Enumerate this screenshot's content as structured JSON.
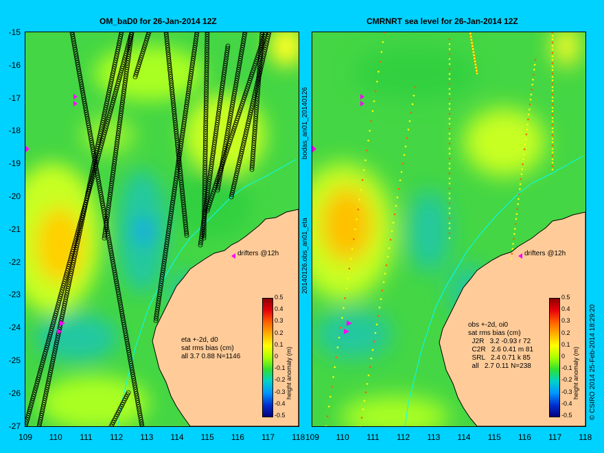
{
  "left_panel": {
    "title": "OM_baD0 for 26-Jan-2014 12Z",
    "info_lines": [
      "eta +-2d, d0",
      "sat rms bias (cm)",
      "all 3.7 0.88 N=1146"
    ],
    "drifter_label": "drifters @12h"
  },
  "right_panel": {
    "title": "CMRNRT sea level  for 26-Jan-2014 12Z",
    "info_lines": [
      "obs +-2d, oi0",
      "sat rms bias (cm)",
      "  J2R   3.2 -0.93 r 72",
      "  C2R   2.6 0.41 m 81",
      "  SRL   2.4 0.71 k 85",
      "  all   2.7 0.11 N=238"
    ],
    "drifter_label": "drifters @12h"
  },
  "middle_vertical_top": "bodas_an01_20140126",
  "middle_vertical_bottom": "20140126.obs_an01_eta",
  "credit": "© CSIRO 2014   25-Feb-2014 18:29:20",
  "y_axis": [
    "-15",
    "-16",
    "-17",
    "-18",
    "-19",
    "-20",
    "-21",
    "-22",
    "-23",
    "-24",
    "-25",
    "-26",
    "-27"
  ],
  "x_axis": [
    "109",
    "110",
    "111",
    "112",
    "113",
    "114",
    "115",
    "116",
    "117",
    "118"
  ],
  "colorbar": {
    "title": "height anomaly (m)",
    "ticks": [
      "0.5",
      "0.4",
      "0.3",
      "0.2",
      "0.1",
      "0",
      "-0.1",
      "-0.2",
      "-0.3",
      "-0.4",
      "-0.5"
    ],
    "colors": [
      "#8b0000",
      "#e8000b",
      "#ff6000",
      "#ffb000",
      "#ffff00",
      "#aaff00",
      "#30e030",
      "#00d2c8",
      "#0096ff",
      "#0030d0",
      "#00007f"
    ]
  },
  "colors": {
    "background": "#00d2ff",
    "land": "#ffcc99",
    "sea": "#44d644",
    "drifter": "#ff00ff"
  }
}
